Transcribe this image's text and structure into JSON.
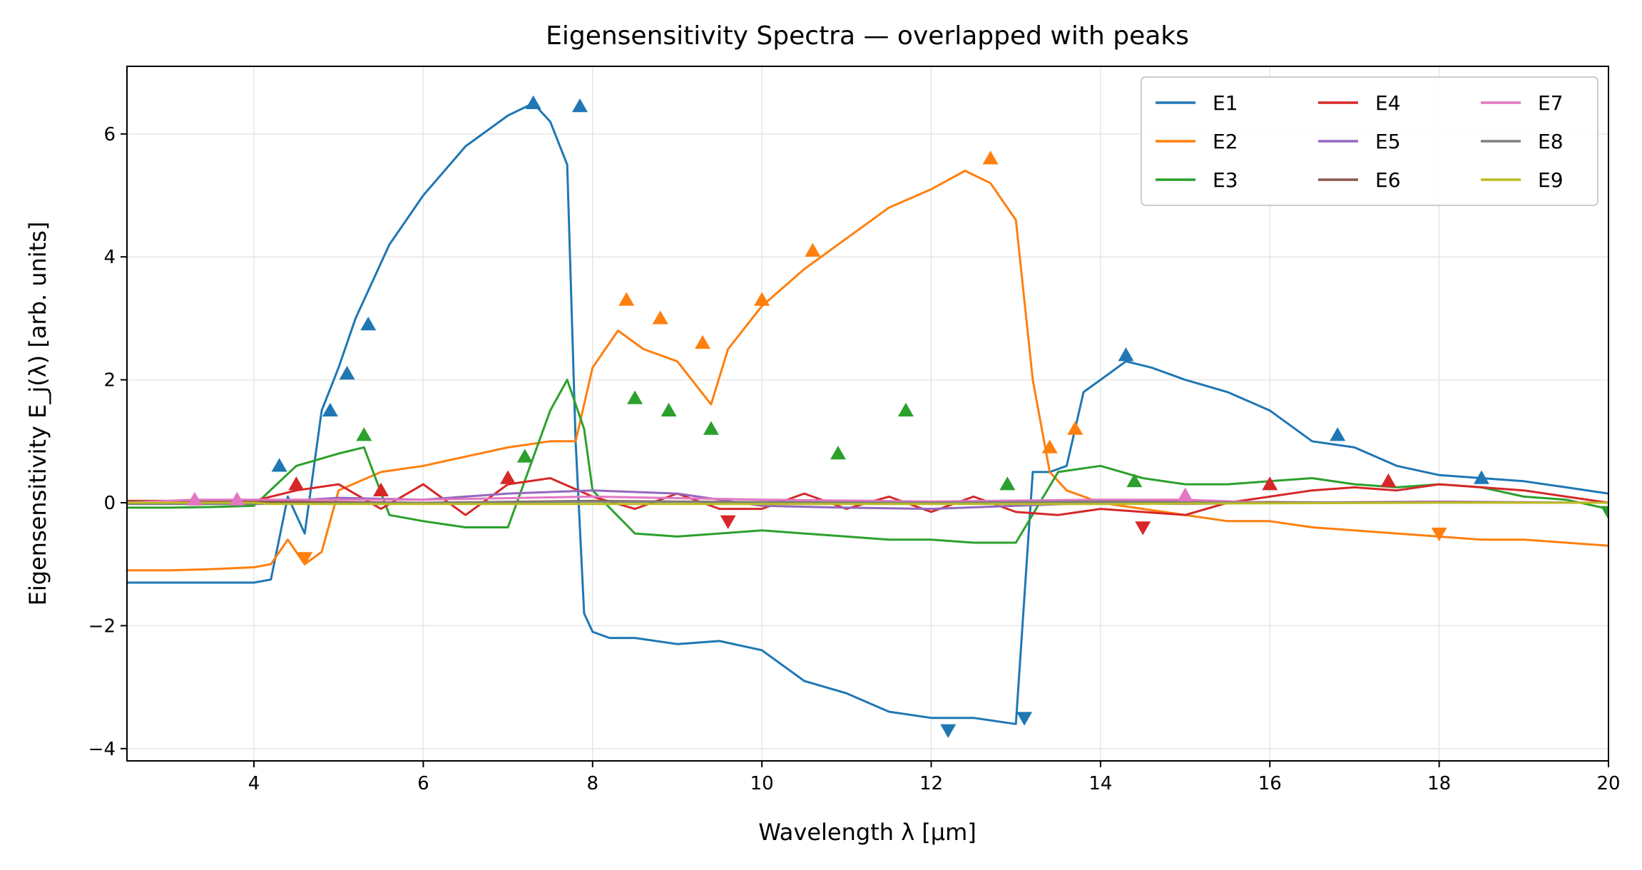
{
  "chart_data": {
    "type": "line",
    "title": "Eigensensitivity Spectra — overlapped with peaks",
    "xlabel": "Wavelength λ [µm]",
    "ylabel": "Eigensensitivity E_j(λ) [arb. units]",
    "xlim": [
      2.5,
      20
    ],
    "ylim": [
      -4.2,
      7.1
    ],
    "xticks": [
      4,
      6,
      8,
      10,
      12,
      14,
      16,
      18,
      20
    ],
    "yticks": [
      -4,
      -2,
      0,
      2,
      4,
      6
    ],
    "grid": true,
    "legend": {
      "placement": "top-right",
      "columns": 3
    },
    "markers": "peaks marked with triangles",
    "series": [
      {
        "name": "E1",
        "color": "#1f77b4",
        "x": [
          2.5,
          3.0,
          3.5,
          4.0,
          4.2,
          4.4,
          4.6,
          4.8,
          5.0,
          5.2,
          5.4,
          5.6,
          6.0,
          6.5,
          7.0,
          7.3,
          7.5,
          7.7,
          7.8,
          7.9,
          8.0,
          8.2,
          8.5,
          9.0,
          9.5,
          10.0,
          10.5,
          11.0,
          11.5,
          12.0,
          12.5,
          13.0,
          13.2,
          13.4,
          13.6,
          13.8,
          14.0,
          14.3,
          14.6,
          15.0,
          15.5,
          16.0,
          16.5,
          17.0,
          17.5,
          18.0,
          18.5,
          19.0,
          19.5,
          20.0
        ],
        "y": [
          -1.3,
          -1.3,
          -1.3,
          -1.3,
          -1.25,
          0.1,
          -0.5,
          1.5,
          2.2,
          3.0,
          3.6,
          4.2,
          5.0,
          5.8,
          6.3,
          6.5,
          6.2,
          5.5,
          1.0,
          -1.8,
          -2.1,
          -2.2,
          -2.2,
          -2.3,
          -2.25,
          -2.4,
          -2.9,
          -3.1,
          -3.4,
          -3.5,
          -3.5,
          -3.6,
          0.5,
          0.5,
          0.6,
          1.8,
          2.0,
          2.3,
          2.2,
          2.0,
          1.8,
          1.5,
          1.0,
          0.9,
          0.6,
          0.45,
          0.4,
          0.35,
          0.25,
          0.15
        ]
      },
      {
        "name": "E2",
        "color": "#ff7f0e",
        "x": [
          2.5,
          3.0,
          3.5,
          4.0,
          4.2,
          4.4,
          4.6,
          4.8,
          5.0,
          5.5,
          6.0,
          6.5,
          7.0,
          7.5,
          7.8,
          8.0,
          8.3,
          8.6,
          9.0,
          9.4,
          9.6,
          10.0,
          10.5,
          11.0,
          11.5,
          12.0,
          12.4,
          12.7,
          13.0,
          13.2,
          13.4,
          13.6,
          14.0,
          14.5,
          15.0,
          15.5,
          16.0,
          16.5,
          17.0,
          17.5,
          18.0,
          18.5,
          19.0,
          19.5,
          20.0
        ],
        "y": [
          -1.1,
          -1.1,
          -1.08,
          -1.05,
          -1.0,
          -0.6,
          -1.0,
          -0.8,
          0.2,
          0.5,
          0.6,
          0.75,
          0.9,
          1.0,
          1.0,
          2.2,
          2.8,
          2.5,
          2.3,
          1.6,
          2.5,
          3.2,
          3.8,
          4.3,
          4.8,
          5.1,
          5.4,
          5.2,
          4.6,
          2.0,
          0.5,
          0.2,
          0.0,
          -0.1,
          -0.2,
          -0.3,
          -0.3,
          -0.4,
          -0.45,
          -0.5,
          -0.55,
          -0.6,
          -0.6,
          -0.65,
          -0.7
        ]
      },
      {
        "name": "E3",
        "color": "#2ca02c",
        "x": [
          2.5,
          3.0,
          3.5,
          4.0,
          4.5,
          5.0,
          5.3,
          5.6,
          6.0,
          6.5,
          7.0,
          7.5,
          7.7,
          7.9,
          8.0,
          8.5,
          9.0,
          9.5,
          10.0,
          10.5,
          11.0,
          11.5,
          12.0,
          12.5,
          13.0,
          13.5,
          14.0,
          14.5,
          15.0,
          15.5,
          16.0,
          16.5,
          17.0,
          17.5,
          18.0,
          18.5,
          19.0,
          19.5,
          20.0
        ],
        "y": [
          -0.08,
          -0.08,
          -0.07,
          -0.05,
          0.6,
          0.8,
          0.9,
          -0.2,
          -0.3,
          -0.4,
          -0.4,
          1.5,
          2.0,
          1.2,
          0.2,
          -0.5,
          -0.55,
          -0.5,
          -0.45,
          -0.5,
          -0.55,
          -0.6,
          -0.6,
          -0.65,
          -0.65,
          0.5,
          0.6,
          0.4,
          0.3,
          0.3,
          0.35,
          0.4,
          0.3,
          0.25,
          0.3,
          0.25,
          0.1,
          0.05,
          -0.1
        ]
      },
      {
        "name": "E4",
        "color": "#d62728",
        "x": [
          2.5,
          3.5,
          4.0,
          4.5,
          5.0,
          5.5,
          6.0,
          6.5,
          7.0,
          7.5,
          8.0,
          8.5,
          9.0,
          9.5,
          10.0,
          10.5,
          11.0,
          11.5,
          12.0,
          12.5,
          13.0,
          13.5,
          14.0,
          14.5,
          15.0,
          15.5,
          16.0,
          16.5,
          17.0,
          17.5,
          18.0,
          18.5,
          19.0,
          19.5,
          20.0
        ],
        "y": [
          0.03,
          0.03,
          0.03,
          0.2,
          0.3,
          -0.1,
          0.3,
          -0.2,
          0.3,
          0.4,
          0.1,
          -0.1,
          0.15,
          -0.1,
          -0.1,
          0.15,
          -0.1,
          0.1,
          -0.15,
          0.1,
          -0.15,
          -0.2,
          -0.1,
          -0.15,
          -0.2,
          0.0,
          0.1,
          0.2,
          0.25,
          0.2,
          0.3,
          0.25,
          0.2,
          0.1,
          0.0
        ]
      },
      {
        "name": "E5",
        "color": "#9467bd",
        "x": [
          2.5,
          4.0,
          5.0,
          6.0,
          7.0,
          8.0,
          9.0,
          10.0,
          11.0,
          12.0,
          13.0,
          14.0,
          15.0,
          16.0,
          17.0,
          18.0,
          19.0,
          20.0
        ],
        "y": [
          0.0,
          0.0,
          0.08,
          0.05,
          0.15,
          0.2,
          0.15,
          -0.05,
          -0.08,
          -0.1,
          -0.05,
          0.0,
          -0.02,
          0.0,
          0.0,
          0.0,
          0.0,
          0.0
        ]
      },
      {
        "name": "E6",
        "color": "#8c564b",
        "x": [
          2.5,
          4.0,
          6.0,
          8.0,
          10.0,
          12.0,
          14.0,
          16.0,
          18.0,
          20.0
        ],
        "y": [
          0.02,
          0.02,
          0.0,
          0.03,
          0.01,
          0.0,
          0.02,
          0.01,
          0.0,
          0.0
        ]
      },
      {
        "name": "E7",
        "color": "#e377c2",
        "x": [
          2.5,
          3.3,
          3.8,
          4.5,
          6.0,
          8.0,
          10.0,
          12.0,
          14.0,
          15.0,
          16.0,
          18.0,
          20.0
        ],
        "y": [
          0.0,
          0.05,
          0.05,
          0.05,
          0.05,
          0.1,
          0.05,
          0.02,
          0.05,
          0.05,
          0.0,
          0.02,
          0.0
        ]
      },
      {
        "name": "E8",
        "color": "#7f7f7f",
        "x": [
          2.5,
          4.0,
          6.0,
          8.0,
          10.0,
          12.0,
          14.0,
          16.0,
          18.0,
          20.0
        ],
        "y": [
          -0.02,
          -0.02,
          0.0,
          0.02,
          0.01,
          0.0,
          0.02,
          0.0,
          0.01,
          0.0
        ]
      },
      {
        "name": "E9",
        "color": "#bcbd22",
        "x": [
          2.5,
          4.0,
          4.2,
          6.0,
          8.0,
          10.0,
          12.0,
          14.0,
          16.0,
          18.0,
          20.0
        ],
        "y": [
          0.0,
          0.0,
          -0.02,
          -0.02,
          -0.02,
          -0.02,
          -0.02,
          -0.02,
          -0.01,
          0.0,
          0.0
        ]
      }
    ],
    "peaks": [
      {
        "series": "E1",
        "x": [
          4.3,
          4.9,
          5.1,
          5.35,
          7.3,
          7.85,
          12.2,
          13.1,
          14.3,
          16.8,
          18.5
        ],
        "y": [
          0.6,
          1.5,
          2.1,
          2.9,
          6.5,
          6.45,
          -3.7,
          -3.5,
          2.4,
          1.1,
          0.4
        ],
        "dir": [
          1,
          1,
          1,
          1,
          1,
          1,
          -1,
          -1,
          1,
          1,
          1
        ]
      },
      {
        "series": "E2",
        "x": [
          4.6,
          8.4,
          8.8,
          9.3,
          10.0,
          10.6,
          12.7,
          13.4,
          13.7,
          18.0
        ],
        "y": [
          -0.9,
          3.3,
          3.0,
          2.6,
          3.3,
          4.1,
          5.6,
          0.9,
          1.2,
          -0.5
        ],
        "dir": [
          -1,
          1,
          1,
          1,
          1,
          1,
          1,
          1,
          1,
          -1
        ]
      },
      {
        "series": "E3",
        "x": [
          5.3,
          7.2,
          8.5,
          8.9,
          9.4,
          10.9,
          11.7,
          12.9,
          14.4,
          20.0
        ],
        "y": [
          1.1,
          0.75,
          1.7,
          1.5,
          1.2,
          0.8,
          1.5,
          0.3,
          0.35,
          -0.15
        ],
        "dir": [
          1,
          1,
          1,
          1,
          1,
          1,
          1,
          1,
          1,
          -1
        ]
      },
      {
        "series": "E4",
        "x": [
          4.5,
          5.5,
          7.0,
          9.6,
          14.5,
          16.0,
          17.4
        ],
        "y": [
          0.3,
          0.2,
          0.4,
          -0.3,
          -0.4,
          0.3,
          0.35
        ],
        "dir": [
          1,
          1,
          1,
          -1,
          -1,
          1,
          1
        ]
      },
      {
        "series": "E7",
        "x": [
          3.3,
          3.8,
          15.0
        ],
        "y": [
          0.05,
          0.05,
          0.12
        ],
        "dir": [
          1,
          1,
          1
        ]
      }
    ]
  }
}
